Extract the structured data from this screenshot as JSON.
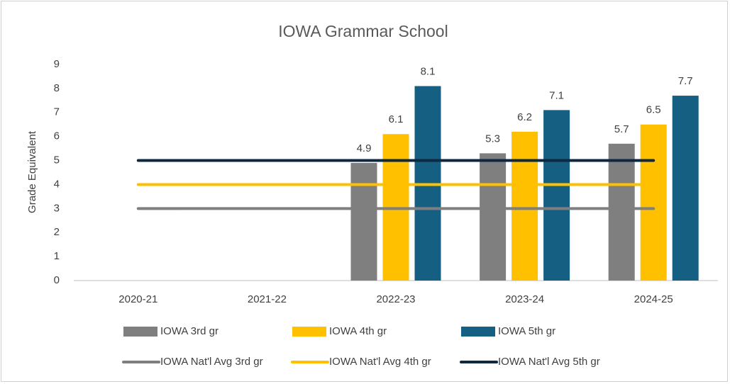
{
  "chart_data": {
    "type": "bar",
    "title": "IOWA Grammar School",
    "y_label": "Grade Equivalent",
    "categories": [
      "2020-21",
      "2021-22",
      "2022-23",
      "2023-24",
      "2024-25"
    ],
    "series": [
      {
        "name": "IOWA 3rd gr",
        "type": "bar",
        "color": "#7f7f7f",
        "values": [
          null,
          null,
          4.9,
          5.3,
          5.7
        ]
      },
      {
        "name": "IOWA 4th gr",
        "type": "bar",
        "color": "#ffc000",
        "values": [
          null,
          null,
          6.1,
          6.2,
          6.5
        ]
      },
      {
        "name": "IOWA 5th gr",
        "type": "bar",
        "color": "#156082",
        "values": [
          null,
          null,
          8.1,
          7.1,
          7.7
        ]
      },
      {
        "name": "IOWA Nat'l Avg 3rd gr",
        "type": "line",
        "color": "#7f7f7f",
        "values": [
          3,
          3,
          3,
          3,
          3
        ]
      },
      {
        "name": "IOWA Nat'l Avg 4th gr",
        "type": "line",
        "color": "#ffc000",
        "values": [
          4,
          4,
          4,
          4,
          4
        ]
      },
      {
        "name": "IOWA Nat'l Avg 5th gr",
        "type": "line",
        "color": "#0e2841",
        "values": [
          5,
          5,
          5,
          5,
          5
        ]
      }
    ],
    "ylim": [
      0,
      9
    ],
    "yticks": [
      0,
      1,
      2,
      3,
      4,
      5,
      6,
      7,
      8,
      9
    ],
    "grid": false,
    "legend": "bottom"
  }
}
